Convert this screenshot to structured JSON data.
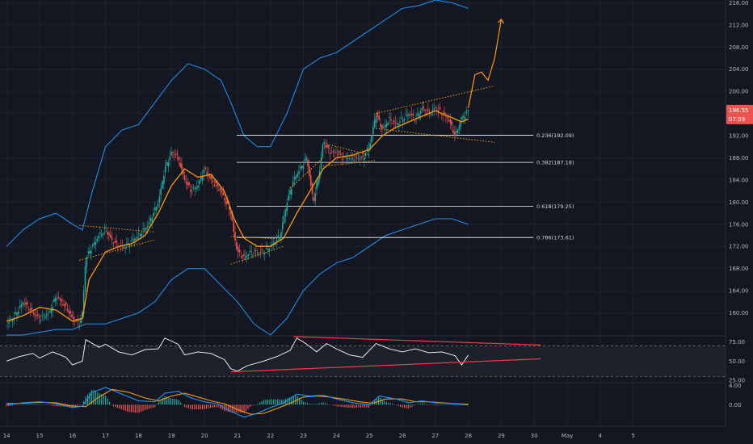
{
  "chart_data": {
    "type": "line",
    "main": {
      "ylim": [
        156,
        216.5
      ],
      "y_ticks": [
        "216.00",
        "212.00",
        "208.00",
        "204.00",
        "200.00",
        "196.00",
        "192.00",
        "188.00",
        "184.00",
        "180.00",
        "176.00",
        "172.00",
        "168.00",
        "164.00",
        "160.00"
      ],
      "y_tick_values": [
        216,
        212,
        208,
        204,
        200,
        196,
        192,
        188,
        184,
        180,
        176,
        172,
        168,
        164,
        160
      ],
      "price_badge": {
        "price": "196.55",
        "time": "07:59",
        "value": 196.55,
        "color": "#ef5350"
      },
      "fib_levels": [
        {
          "label": "0.236(192.09)",
          "value": 192.09
        },
        {
          "label": "0.382(187.18)",
          "value": 187.18
        },
        {
          "label": "0.618(179.25)",
          "value": 179.25
        },
        {
          "label": "0.786(173.61)",
          "value": 173.61
        }
      ],
      "price_path": [
        [
          14,
          158
        ],
        [
          14.2,
          159
        ],
        [
          14.5,
          162
        ],
        [
          14.8,
          160
        ],
        [
          15,
          159
        ],
        [
          15.3,
          160
        ],
        [
          15.5,
          163
        ],
        [
          15.8,
          161
        ],
        [
          16,
          159
        ],
        [
          16.2,
          158
        ],
        [
          16.3,
          160
        ],
        [
          16.4,
          170
        ],
        [
          16.6,
          172
        ],
        [
          16.8,
          174
        ],
        [
          17,
          175
        ],
        [
          17.2,
          173
        ],
        [
          17.4,
          172
        ],
        [
          17.6,
          172
        ],
        [
          17.8,
          173
        ],
        [
          18,
          174
        ],
        [
          18.3,
          176
        ],
        [
          18.6,
          180
        ],
        [
          18.8,
          186
        ],
        [
          19,
          189
        ],
        [
          19.2,
          188
        ],
        [
          19.4,
          184
        ],
        [
          19.6,
          182
        ],
        [
          19.8,
          183
        ],
        [
          20,
          186
        ],
        [
          20.2,
          184
        ],
        [
          20.5,
          182
        ],
        [
          20.8,
          178
        ],
        [
          20.9,
          174
        ],
        [
          21,
          171
        ],
        [
          21.2,
          170
        ],
        [
          21.4,
          171
        ],
        [
          21.6,
          171
        ],
        [
          21.8,
          171
        ],
        [
          22,
          172
        ],
        [
          22.3,
          174
        ],
        [
          22.5,
          180
        ],
        [
          22.7,
          184
        ],
        [
          22.9,
          186
        ],
        [
          23.1,
          188
        ],
        [
          23.2,
          184
        ],
        [
          23.3,
          180
        ],
        [
          23.5,
          186
        ],
        [
          23.6,
          191
        ],
        [
          23.8,
          189
        ],
        [
          24,
          189
        ],
        [
          24.2,
          188
        ],
        [
          24.5,
          188
        ],
        [
          24.8,
          188
        ],
        [
          25,
          190
        ],
        [
          25.2,
          196
        ],
        [
          25.4,
          193
        ],
        [
          25.6,
          195
        ],
        [
          25.8,
          194
        ],
        [
          26,
          195
        ],
        [
          26.2,
          196
        ],
        [
          26.4,
          195
        ],
        [
          26.6,
          197
        ],
        [
          26.8,
          196
        ],
        [
          27,
          197
        ],
        [
          27.2,
          196
        ],
        [
          27.4,
          195
        ],
        [
          27.6,
          192
        ],
        [
          27.8,
          195
        ],
        [
          28,
          196.5
        ]
      ],
      "ma_path": [
        [
          14,
          158.5
        ],
        [
          14.5,
          159.5
        ],
        [
          15,
          161
        ],
        [
          15.5,
          160.5
        ],
        [
          16,
          158.5
        ],
        [
          16.3,
          159
        ],
        [
          16.5,
          166
        ],
        [
          16.8,
          169
        ],
        [
          17,
          171
        ],
        [
          17.4,
          172
        ],
        [
          17.8,
          172.5
        ],
        [
          18.2,
          174
        ],
        [
          18.6,
          178
        ],
        [
          19,
          183
        ],
        [
          19.4,
          186
        ],
        [
          19.8,
          184.5
        ],
        [
          20.2,
          185
        ],
        [
          20.6,
          182
        ],
        [
          20.9,
          177
        ],
        [
          21.2,
          173.5
        ],
        [
          21.6,
          172
        ],
        [
          22,
          172
        ],
        [
          22.4,
          173.5
        ],
        [
          22.8,
          178
        ],
        [
          23.2,
          182
        ],
        [
          23.6,
          186
        ],
        [
          24,
          188
        ],
        [
          24.5,
          188.5
        ],
        [
          25,
          189.5
        ],
        [
          25.4,
          192
        ],
        [
          25.8,
          193.5
        ],
        [
          26.2,
          194.5
        ],
        [
          26.6,
          195.5
        ],
        [
          27,
          196.5
        ],
        [
          27.4,
          195.5
        ],
        [
          27.8,
          194.5
        ],
        [
          28,
          195
        ]
      ],
      "bb_upper": [
        [
          14,
          172
        ],
        [
          14.5,
          175
        ],
        [
          15,
          177
        ],
        [
          15.5,
          178
        ],
        [
          16,
          176
        ],
        [
          16.3,
          175
        ],
        [
          16.6,
          182
        ],
        [
          17,
          190
        ],
        [
          17.5,
          193
        ],
        [
          18,
          194
        ],
        [
          18.5,
          198
        ],
        [
          19,
          202
        ],
        [
          19.5,
          205
        ],
        [
          20,
          204
        ],
        [
          20.5,
          202
        ],
        [
          20.8,
          198
        ],
        [
          21.2,
          192
        ],
        [
          21.6,
          190
        ],
        [
          22,
          190
        ],
        [
          22.5,
          196
        ],
        [
          23,
          204
        ],
        [
          23.5,
          206
        ],
        [
          24,
          207
        ],
        [
          24.5,
          209
        ],
        [
          25,
          211
        ],
        [
          25.5,
          213
        ],
        [
          26,
          215
        ],
        [
          26.5,
          215.5
        ],
        [
          27,
          216.5
        ],
        [
          27.5,
          216
        ],
        [
          28,
          215
        ]
      ],
      "bb_lower": [
        [
          14,
          156
        ],
        [
          14.5,
          156
        ],
        [
          15,
          156.5
        ],
        [
          15.5,
          157
        ],
        [
          16,
          157
        ],
        [
          16.4,
          158
        ],
        [
          17,
          158
        ],
        [
          17.5,
          159
        ],
        [
          18,
          160
        ],
        [
          18.5,
          162
        ],
        [
          19,
          166
        ],
        [
          19.5,
          168
        ],
        [
          20,
          168
        ],
        [
          20.5,
          165
        ],
        [
          21,
          162
        ],
        [
          21.5,
          158
        ],
        [
          22,
          156
        ],
        [
          22.5,
          159
        ],
        [
          23,
          164
        ],
        [
          23.5,
          167
        ],
        [
          24,
          169
        ],
        [
          24.5,
          170
        ],
        [
          25,
          172
        ],
        [
          25.5,
          174
        ],
        [
          26,
          175
        ],
        [
          26.5,
          176
        ],
        [
          27,
          177
        ],
        [
          27.5,
          177
        ],
        [
          28,
          176
        ]
      ],
      "projection": [
        [
          28,
          197
        ],
        [
          28.2,
          203
        ],
        [
          28.4,
          203.5
        ],
        [
          28.6,
          202
        ],
        [
          28.8,
          206
        ],
        [
          29,
          213
        ]
      ],
      "trendlines": [
        [
          [
            16.2,
            169.5
          ],
          [
            18.5,
            173.2
          ]
        ],
        [
          [
            16.2,
            175.8
          ],
          [
            18.5,
            174.6
          ]
        ],
        [
          [
            20.8,
            168.8
          ],
          [
            22.4,
            172.0
          ]
        ],
        [
          [
            20.8,
            173.8
          ],
          [
            22.2,
            173.4
          ]
        ],
        [
          [
            22.6,
            182.5
          ],
          [
            23.6,
            188.0
          ]
        ],
        [
          [
            23.7,
            190.5
          ],
          [
            25.0,
            188.5
          ]
        ],
        [
          [
            23.6,
            186.5
          ],
          [
            25.2,
            187.5
          ]
        ],
        [
          [
            25.2,
            196.0
          ],
          [
            28.8,
            201.0
          ]
        ],
        [
          [
            25.2,
            193.3
          ],
          [
            28.8,
            190.8
          ]
        ]
      ]
    },
    "rsi": {
      "y_ticks": [
        "75.00",
        "50.00",
        "25.00"
      ],
      "y_tick_values": [
        75,
        50,
        25
      ],
      "ylim": [
        24,
        83
      ],
      "bands": [
        70,
        30
      ],
      "path": [
        [
          14,
          50
        ],
        [
          14.4,
          56
        ],
        [
          14.8,
          60
        ],
        [
          15,
          54
        ],
        [
          15.4,
          62
        ],
        [
          15.8,
          55
        ],
        [
          16,
          45
        ],
        [
          16.3,
          50
        ],
        [
          16.4,
          78
        ],
        [
          16.8,
          68
        ],
        [
          17,
          72
        ],
        [
          17.4,
          62
        ],
        [
          17.8,
          58
        ],
        [
          18.2,
          65
        ],
        [
          18.6,
          66
        ],
        [
          18.8,
          80
        ],
        [
          19,
          76
        ],
        [
          19.2,
          72
        ],
        [
          19.4,
          58
        ],
        [
          19.8,
          62
        ],
        [
          20.2,
          60
        ],
        [
          20.6,
          52
        ],
        [
          20.8,
          40
        ],
        [
          21,
          37
        ],
        [
          21.3,
          44
        ],
        [
          21.8,
          50
        ],
        [
          22.2,
          56
        ],
        [
          22.6,
          64
        ],
        [
          22.8,
          80
        ],
        [
          23.1,
          72
        ],
        [
          23.4,
          62
        ],
        [
          23.7,
          73
        ],
        [
          24,
          66
        ],
        [
          24.4,
          58
        ],
        [
          24.8,
          55
        ],
        [
          25.2,
          73
        ],
        [
          25.6,
          66
        ],
        [
          26,
          62
        ],
        [
          26.4,
          66
        ],
        [
          26.8,
          61
        ],
        [
          27.2,
          62
        ],
        [
          27.6,
          57
        ],
        [
          27.8,
          45
        ],
        [
          28,
          58
        ]
      ],
      "trend_upper": [
        [
          22.7,
          82
        ],
        [
          30.2,
          71
        ]
      ],
      "trend_lower": [
        [
          20.8,
          36
        ],
        [
          30.2,
          53
        ]
      ]
    },
    "macd": {
      "y_ticks": [
        "4.00",
        "0.00"
      ],
      "y_tick_values": [
        4,
        0
      ],
      "ylim": [
        -4.5,
        4.6
      ],
      "macd_line": [
        [
          14,
          0
        ],
        [
          14.5,
          0.4
        ],
        [
          15,
          0.6
        ],
        [
          15.5,
          0.2
        ],
        [
          16,
          -0.6
        ],
        [
          16.3,
          -0.3
        ],
        [
          16.6,
          2.6
        ],
        [
          17,
          3.6
        ],
        [
          17.5,
          2.2
        ],
        [
          18,
          0.8
        ],
        [
          18.5,
          0.6
        ],
        [
          18.8,
          2.4
        ],
        [
          19.2,
          2.8
        ],
        [
          19.6,
          1.4
        ],
        [
          20,
          0.6
        ],
        [
          20.4,
          0.2
        ],
        [
          20.8,
          -1.4
        ],
        [
          21.2,
          -2.6
        ],
        [
          21.6,
          -1.8
        ],
        [
          22,
          -0.6
        ],
        [
          22.4,
          0.4
        ],
        [
          22.8,
          2.2
        ],
        [
          23.2,
          1.8
        ],
        [
          23.6,
          2.0
        ],
        [
          24,
          1.2
        ],
        [
          24.5,
          0.4
        ],
        [
          25,
          0
        ],
        [
          25.3,
          1.8
        ],
        [
          25.8,
          1.2
        ],
        [
          26.2,
          0.4
        ],
        [
          26.6,
          0.8
        ],
        [
          27,
          0.4
        ],
        [
          27.5,
          0.2
        ],
        [
          28,
          0
        ]
      ],
      "signal_line": [
        [
          14,
          0.2
        ],
        [
          14.5,
          0.3
        ],
        [
          15,
          0.5
        ],
        [
          15.5,
          0.4
        ],
        [
          16,
          -0.3
        ],
        [
          16.4,
          -0.4
        ],
        [
          16.8,
          1.6
        ],
        [
          17.2,
          3.2
        ],
        [
          17.7,
          2.6
        ],
        [
          18.2,
          1.4
        ],
        [
          18.6,
          0.8
        ],
        [
          19,
          1.8
        ],
        [
          19.4,
          2.4
        ],
        [
          19.8,
          1.6
        ],
        [
          20.2,
          0.8
        ],
        [
          20.6,
          0.2
        ],
        [
          21,
          -1.0
        ],
        [
          21.4,
          -2.0
        ],
        [
          21.8,
          -1.8
        ],
        [
          22.2,
          -0.8
        ],
        [
          22.6,
          0.3
        ],
        [
          23,
          1.6
        ],
        [
          23.4,
          1.8
        ],
        [
          23.8,
          1.6
        ],
        [
          24.2,
          1.2
        ],
        [
          24.7,
          0.6
        ],
        [
          25.1,
          0.3
        ],
        [
          25.5,
          1.2
        ],
        [
          26,
          1.2
        ],
        [
          26.4,
          0.6
        ],
        [
          26.8,
          0.6
        ],
        [
          27.2,
          0.4
        ],
        [
          27.6,
          0.2
        ],
        [
          28,
          0.1
        ]
      ]
    },
    "x_axis": {
      "range": [
        13.8,
        35.8
      ],
      "ticks": [
        "14",
        "15",
        "16",
        "17",
        "18",
        "19",
        "20",
        "21",
        "22",
        "23",
        "24",
        "25",
        "26",
        "27",
        "28",
        "29",
        "30",
        "May",
        "4",
        "5"
      ],
      "tick_values": [
        14,
        15,
        16,
        17,
        18,
        19,
        20,
        21,
        22,
        23,
        24,
        25,
        26,
        27,
        28,
        29,
        30,
        31,
        32,
        33
      ]
    },
    "colors": {
      "background": "#131722",
      "candle_up": "#26a69a",
      "candle_down": "#ef5350",
      "bollinger": "#2196f3",
      "moving_average": "#ff9800",
      "projection": "#ff9800",
      "fib": "#ffffff",
      "rsi_line": "#ffffff",
      "rsi_trend": "#f23645",
      "macd_line": "#2196f3",
      "signal_line": "#ff9800"
    }
  }
}
